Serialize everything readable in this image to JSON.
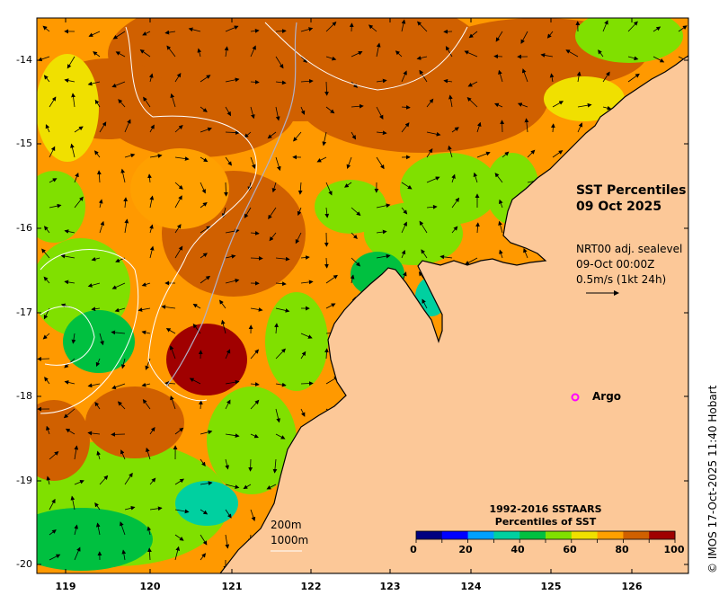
{
  "title": {
    "line1": "SST Percentiles",
    "line2": "09 Oct 2025"
  },
  "vector_info": {
    "line1": "NRT00 adj. sealevel",
    "line2": "09-Oct 00:00Z",
    "line3": "0.5m/s (1kt 24h)"
  },
  "argo_label": "Argo",
  "legend": {
    "title_line1": "1992-2016 SSTAARS",
    "title_line2": "Percentiles of SST",
    "ticks": [
      "0",
      "20",
      "40",
      "60",
      "80",
      "100"
    ],
    "colors": [
      "#000080",
      "#0000ff",
      "#00a0ff",
      "#00d0a0",
      "#00c040",
      "#80e000",
      "#f0e000",
      "#ffa000",
      "#d06000",
      "#a00000"
    ]
  },
  "depth_labels": [
    "200m",
    "1000m"
  ],
  "credit": "© IMOS 17-Oct-2025 11:40 Hobart",
  "axes": {
    "y_ticks": [
      "-14",
      "-15",
      "-16",
      "-17",
      "-18",
      "-19",
      "-20"
    ],
    "x_ticks": [
      "119",
      "120",
      "121",
      "122",
      "123",
      "124",
      "125",
      "126"
    ]
  },
  "map_colors": {
    "land": "#fcc898",
    "background": "#ffffff",
    "argo_marker": "#ff00ff"
  }
}
